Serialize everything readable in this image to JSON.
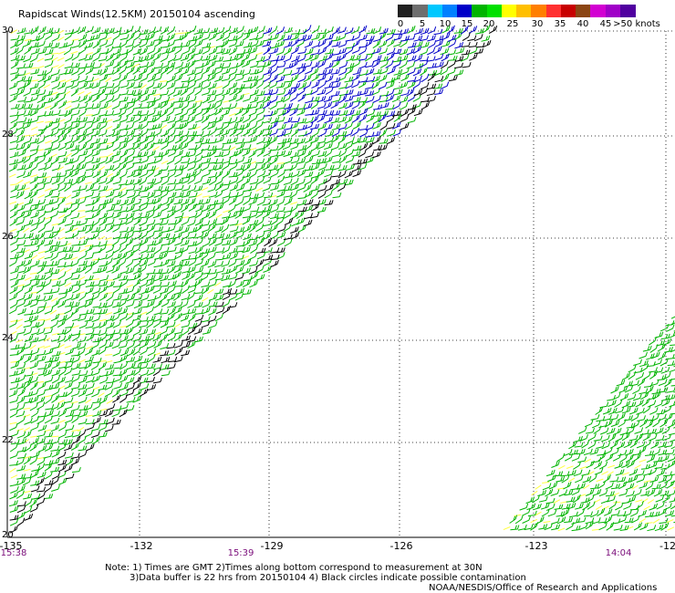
{
  "title": "Rapidscat Winds(12.5KM) 20150104 ascending",
  "legend": {
    "labels": [
      "0",
      "5",
      "10",
      "15",
      "20",
      "25",
      "30",
      "35",
      "40",
      "45",
      ">50 knots"
    ],
    "colors": [
      "#202020",
      "#6e6e6e",
      "#00c8ff",
      "#0080ff",
      "#0000c8",
      "#00b400",
      "#00e000",
      "#ffff00",
      "#ffbf00",
      "#ff7f00",
      "#ff3030",
      "#c80000",
      "#8b4513",
      "#d200d2",
      "#a000c8",
      "#5000a0"
    ]
  },
  "map": {
    "lat_labels": [
      "30",
      "28",
      "26",
      "24",
      "22",
      "20"
    ],
    "lon_labels": [
      "-135",
      "-132",
      "-129",
      "-126",
      "-123",
      "-12"
    ],
    "time_labels": [
      "15:38",
      "15:39",
      "14:04"
    ],
    "barb_colors": {
      "calm": "#ffff40",
      "light": "#00b400",
      "moderate": "#0000c8",
      "flagged": "#000000"
    }
  },
  "notes": [
    "Note: 1) Times are GMT 2)Times along bottom correspond to measurement at 30N",
    "3)Data buffer is 22 hrs from 20150104 4) Black circles indicate possible contamination",
    "NOAA/NESDIS/Office of Research and Applications"
  ]
}
